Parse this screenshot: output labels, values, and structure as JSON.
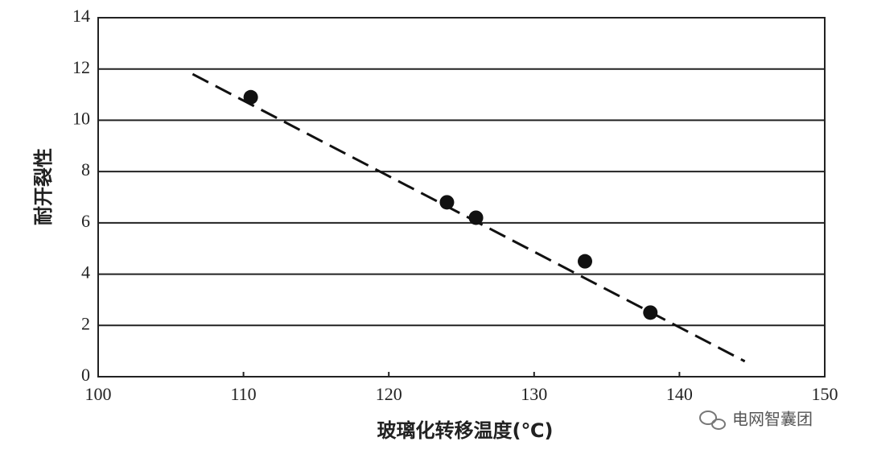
{
  "chart_data": {
    "type": "scatter",
    "x": [
      110.5,
      124,
      126,
      133.5,
      138
    ],
    "values": [
      10.9,
      6.8,
      6.2,
      4.5,
      2.5
    ],
    "color": "#111",
    "trendline": {
      "x": [
        106.5,
        144.5
      ],
      "values": [
        11.8,
        0.6
      ],
      "color": "#111"
    },
    "xlim": [
      100,
      150
    ],
    "xticks": [
      100,
      110,
      120,
      130,
      140,
      150
    ],
    "ylim": [
      0,
      14
    ],
    "yticks": [
      0,
      2,
      4,
      6,
      8,
      10,
      12,
      14
    ],
    "grid": true,
    "xlabel": "玻璃化转移温度(℃)",
    "ylabel": "耐开裂性"
  },
  "watermark": "电网智囊团"
}
